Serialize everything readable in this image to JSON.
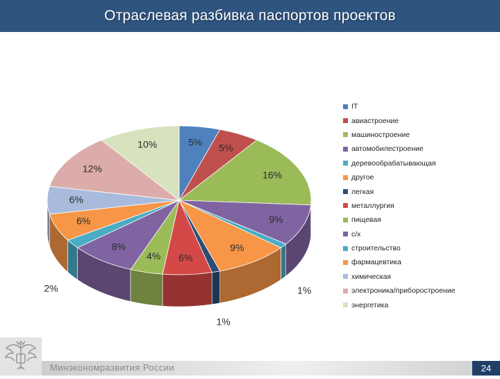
{
  "slide": {
    "title": "Отраслевая разбивка паспортов проектов",
    "footer": "Минэкономразвития России",
    "page_number": "24"
  },
  "colors": {
    "title_bar": "#2f5480",
    "page_badge": "#1f3f66"
  },
  "chart_data": {
    "type": "pie",
    "style": "3d-pie",
    "legend_position": "right",
    "categories": [
      "IT",
      "авиастроение",
      "машиностроение",
      "автомобилестроение",
      "деревообрабатывающая",
      "другое",
      "легкая",
      "металлургия",
      "пищевая",
      "с/х",
      "строительство",
      "фармацевтика",
      "химическая",
      "электроника/приборостроение",
      "энергетика"
    ],
    "values": [
      5,
      5,
      16,
      9,
      1,
      9,
      1,
      6,
      4,
      8,
      2,
      6,
      6,
      12,
      10
    ],
    "labels": [
      "5%",
      "5%",
      "16%",
      "9%",
      "1%",
      "9%",
      "1%",
      "6%",
      "4%",
      "8%",
      "2%",
      "6%",
      "6%",
      "12%",
      "10%"
    ],
    "colors": [
      "#4f81bd",
      "#c0504d",
      "#9bbb59",
      "#8064a2",
      "#4bacc6",
      "#f79646",
      "#2c4d75",
      "#d34948",
      "#9bbb59",
      "#8064a2",
      "#4bacc6",
      "#f79646",
      "#a9bbdc",
      "#dcacab",
      "#d7e3be"
    ]
  }
}
